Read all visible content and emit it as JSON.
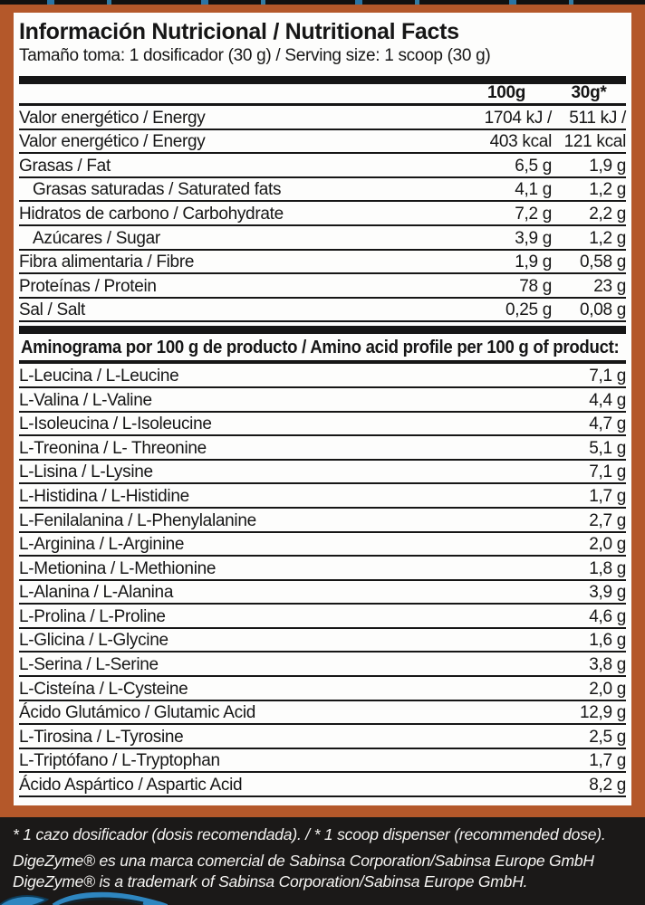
{
  "colors": {
    "frame_orange": "#b4582a",
    "panel_white": "#fdfdfc",
    "text_black": "#161616",
    "footer_black": "#1b1918",
    "logo_blue": "#2e86c0"
  },
  "header": {
    "title": "Información Nutricional / Nutritional Facts",
    "serving": "Tamaño toma: 1 dosificador (30 g) / Serving size: 1 scoop (30 g)"
  },
  "nutrition": {
    "columns": [
      "100g",
      "30g*"
    ],
    "rows": [
      {
        "name": "Valor energético / Energy",
        "per_100g": "1704 kJ /",
        "per_30g": "511 kJ /",
        "indent": false
      },
      {
        "name": "Valor energético / Energy",
        "per_100g": "403 kcal",
        "per_30g": "121 kcal",
        "indent": false
      },
      {
        "name": "Grasas / Fat",
        "per_100g": "6,5 g",
        "per_30g": "1,9 g",
        "indent": false
      },
      {
        "name": "Grasas saturadas / Saturated fats",
        "per_100g": "4,1 g",
        "per_30g": "1,2 g",
        "indent": true
      },
      {
        "name": "Hidratos de carbono / Carbohydrate",
        "per_100g": "7,2 g",
        "per_30g": "2,2 g",
        "indent": false
      },
      {
        "name": "Azúcares / Sugar",
        "per_100g": "3,9 g",
        "per_30g": "1,2 g",
        "indent": true
      },
      {
        "name": "Fibra alimentaria / Fibre",
        "per_100g": "1,9 g",
        "per_30g": "0,58 g",
        "indent": false
      },
      {
        "name": "Proteínas / Protein",
        "per_100g": "78 g",
        "per_30g": "23 g",
        "indent": false
      },
      {
        "name": "Sal / Salt",
        "per_100g": "0,25 g",
        "per_30g": "0,08 g",
        "indent": false
      }
    ]
  },
  "amino": {
    "title": "Aminograma por 100 g de producto / Amino acid profile per 100 g of product:",
    "rows": [
      {
        "name": "L-Leucina / L-Leucine",
        "value": "7,1 g"
      },
      {
        "name": "L-Valina / L-Valine",
        "value": "4,4 g"
      },
      {
        "name": "L-Isoleucina / L-Isoleucine",
        "value": "4,7 g"
      },
      {
        "name": "L-Treonina / L- Threonine",
        "value": "5,1 g"
      },
      {
        "name": "L-Lisina / L-Lysine",
        "value": "7,1 g"
      },
      {
        "name": "L-Histidina / L-Histidine",
        "value": "1,7 g"
      },
      {
        "name": "L-Fenilalanina / L-Phenylalanine",
        "value": "2,7 g"
      },
      {
        "name": "L-Arginina / L-Arginine",
        "value": "2,0 g"
      },
      {
        "name": "L-Metionina / L-Methionine",
        "value": "1,8 g"
      },
      {
        "name": "L-Alanina / L-Alanina",
        "value": "3,9 g"
      },
      {
        "name": "L-Prolina / L-Proline",
        "value": "4,6 g"
      },
      {
        "name": "L-Glicina / L-Glycine",
        "value": "1,6 g"
      },
      {
        "name": "L-Serina / L-Serine",
        "value": "3,8 g"
      },
      {
        "name": "L-Cisteína / L-Cysteine",
        "value": "2,0 g"
      },
      {
        "name": "Ácido Glutámico / Glutamic Acid",
        "value": "12,9 g"
      },
      {
        "name": "L-Tirosina / L-Tyrosine",
        "value": "2,5 g"
      },
      {
        "name": "L-Triptófano / L-Tryptophan",
        "value": "1,7 g"
      },
      {
        "name": "Ácido Aspártico / Aspartic Acid",
        "value": "8,2 g"
      }
    ]
  },
  "footnotes": [
    "* 1 cazo dosificador (dosis recomendada). / * 1 scoop dispenser (recommended dose).",
    "DigeZyme® es una marca comercial de Sabinsa Corporation/Sabinsa Europe GmbH",
    "DigeZyme® is a trademark of Sabinsa Corporation/Sabinsa Europe GmbH."
  ]
}
